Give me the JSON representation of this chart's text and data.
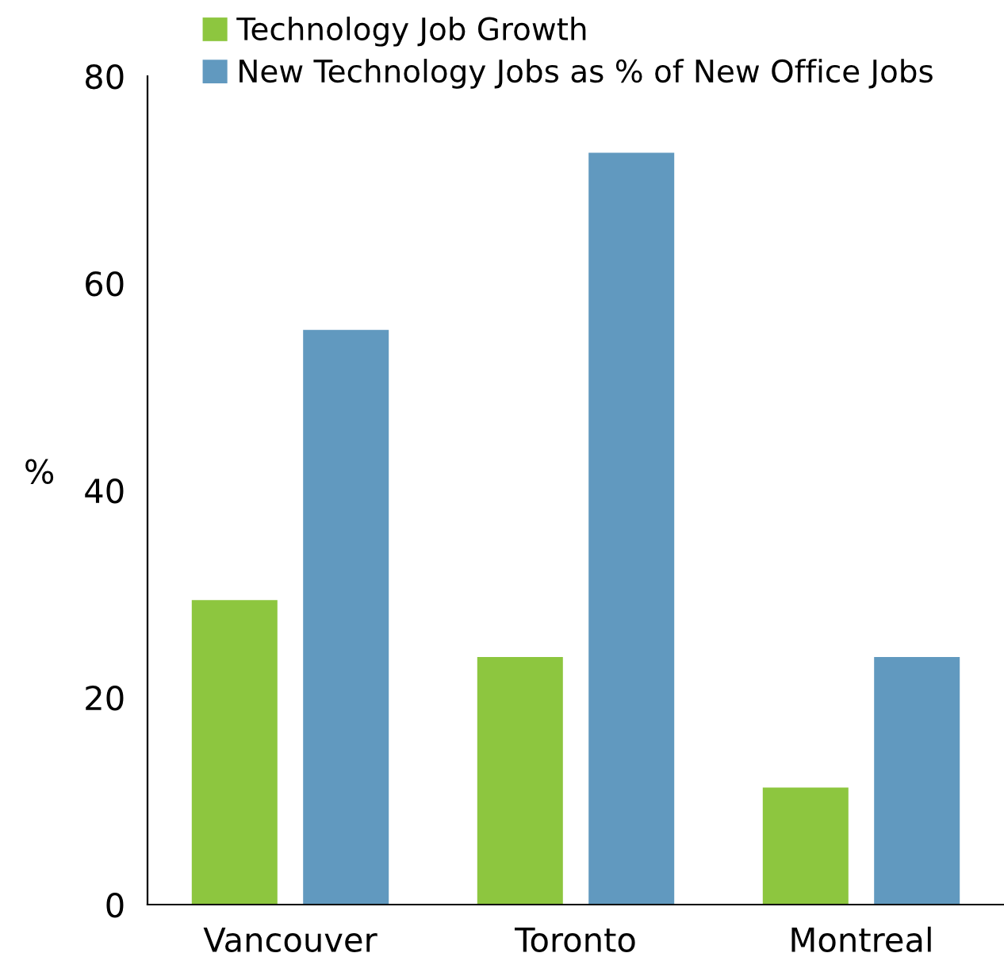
{
  "chart_data": {
    "type": "bar",
    "ylabel": "%",
    "categories": [
      "Vancouver",
      "Toronto",
      "Montreal"
    ],
    "series": [
      {
        "name": "Technology Job Growth",
        "color": "#8dc63f",
        "values": [
          29.4,
          23.9,
          11.3
        ]
      },
      {
        "name": "New Technology Jobs as % of New Office Jobs",
        "color": "#6199bf",
        "values": [
          55.5,
          72.6,
          23.9
        ]
      }
    ],
    "ylim": [
      0,
      80
    ],
    "yticks": [
      0,
      20,
      40,
      60,
      80
    ],
    "grid": false,
    "legend": "top left"
  }
}
